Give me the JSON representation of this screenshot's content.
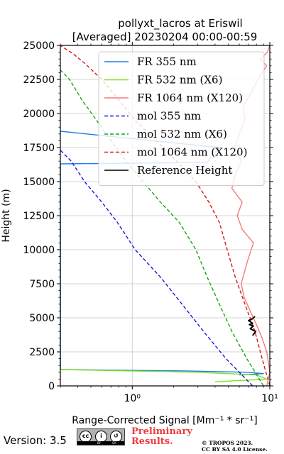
{
  "chart_data": {
    "type": "line",
    "title_line1": "pollyxt_lacros at Eriswil",
    "title_line2": "[Averaged] 20230204 00:00-00:59",
    "xlabel": "Range-Corrected Signal [Mm⁻¹ * sr⁻¹]",
    "ylabel": "Height (m)",
    "xscale": "log",
    "xlim": [
      0.3,
      10
    ],
    "ylim": [
      0,
      25000
    ],
    "x_ticks": [
      1,
      10
    ],
    "x_tick_labels": [
      "10⁰",
      "10¹"
    ],
    "y_ticks": [
      0,
      2500,
      5000,
      7500,
      10000,
      12500,
      15000,
      17500,
      20000,
      22500,
      25000
    ],
    "y_tick_labels": [
      "0",
      "2500",
      "5000",
      "7500",
      "10000",
      "12500",
      "15000",
      "17500",
      "20000",
      "22500",
      "25000"
    ],
    "grid": true,
    "legend_position": "top-right",
    "series": [
      {
        "name": "FR 355 nm",
        "color": "#1e7ee8",
        "style": "solid",
        "x": [
          6,
          9,
          7,
          2.5,
          0.3,
          0.3,
          3.5,
          4.3,
          0.3
        ],
        "y": [
          800,
          900,
          1000,
          1100,
          1200,
          16300,
          16400,
          17500,
          18700
        ]
      },
      {
        "name": "FR 532 nm (X6)",
        "color": "#80e020",
        "style": "solid",
        "x": [
          4,
          9.5,
          8,
          3,
          0.3
        ],
        "y": [
          300,
          500,
          800,
          1000,
          1200
        ]
      },
      {
        "name": "FR 1064 nm (X120)",
        "color": "#f47b7b",
        "style": "solid",
        "x": [
          9.5,
          10,
          9.5,
          8.8,
          8,
          7.2,
          6.5,
          6.2,
          6.8,
          7.6,
          6.3,
          5.8,
          6.3,
          5.3,
          5.6,
          6.2,
          5.6,
          6,
          6.6,
          6.4,
          7.3,
          8.2,
          9.5,
          8.5,
          9.6,
          10
        ],
        "y": [
          0,
          1000,
          2500,
          3500,
          4500,
          5500,
          6500,
          7500,
          9000,
          10500,
          11500,
          12500,
          13500,
          14500,
          15500,
          16500,
          17500,
          18500,
          19500,
          20500,
          21500,
          22500,
          23500,
          24000,
          24500,
          25000
        ]
      },
      {
        "name": "mol 355 nm",
        "color": "#1a1ad8",
        "style": "dashed",
        "x": [
          7.5,
          4.8,
          3.3,
          2.3,
          1.6,
          1.05,
          0.78,
          0.6,
          0.45,
          0.36,
          0.3
        ],
        "y": [
          0,
          2000,
          4000,
          6000,
          8000,
          10000,
          12000,
          13500,
          15000,
          16500,
          17300
        ]
      },
      {
        "name": "mol 532 nm (X6)",
        "color": "#16a816",
        "style": "dashed",
        "x": [
          9,
          6.8,
          5.3,
          4.3,
          3.5,
          2.9,
          2.2,
          1.6,
          1.2,
          0.9,
          0.7,
          0.55,
          0.43,
          0.35,
          0.3
        ],
        "y": [
          0,
          2000,
          4000,
          6000,
          8000,
          10000,
          12000,
          13500,
          15000,
          16500,
          18000,
          19500,
          21000,
          22500,
          23200
        ]
      },
      {
        "name": "mol 1064 nm (X120)",
        "color": "#d81818",
        "style": "dashed",
        "x": [
          10,
          8.8,
          7.8,
          6.6,
          5.6,
          4.9,
          4.3,
          3.6,
          2.9,
          2.1,
          1.5,
          1.05,
          0.8,
          0.6,
          0.45,
          0.37,
          0.3
        ],
        "y": [
          0,
          2000,
          4000,
          6000,
          8000,
          10000,
          12000,
          13500,
          15000,
          16500,
          18000,
          19500,
          21000,
          22500,
          23700,
          24400,
          25000
        ]
      },
      {
        "name": "Reference Height",
        "color": "#000000",
        "style": "solid",
        "x": [
          7.5,
          7.9,
          7.2,
          7.6,
          7.1,
          7.5,
          7,
          7.4,
          7.8
        ],
        "y": [
          3700,
          4000,
          4200,
          4400,
          4500,
          4600,
          4800,
          4900,
          5100
        ]
      }
    ]
  },
  "footer": {
    "version": "Version: 3.5",
    "preliminary_line1": "Preliminary",
    "preliminary_line2": "Results.",
    "copyright_line1": "© TROPOS 2023.",
    "copyright_line2": "CC BY SA 4.0 License.",
    "cc_badge_text": "cc",
    "cc_by_text": "BY",
    "cc_sa_text": "SA"
  }
}
